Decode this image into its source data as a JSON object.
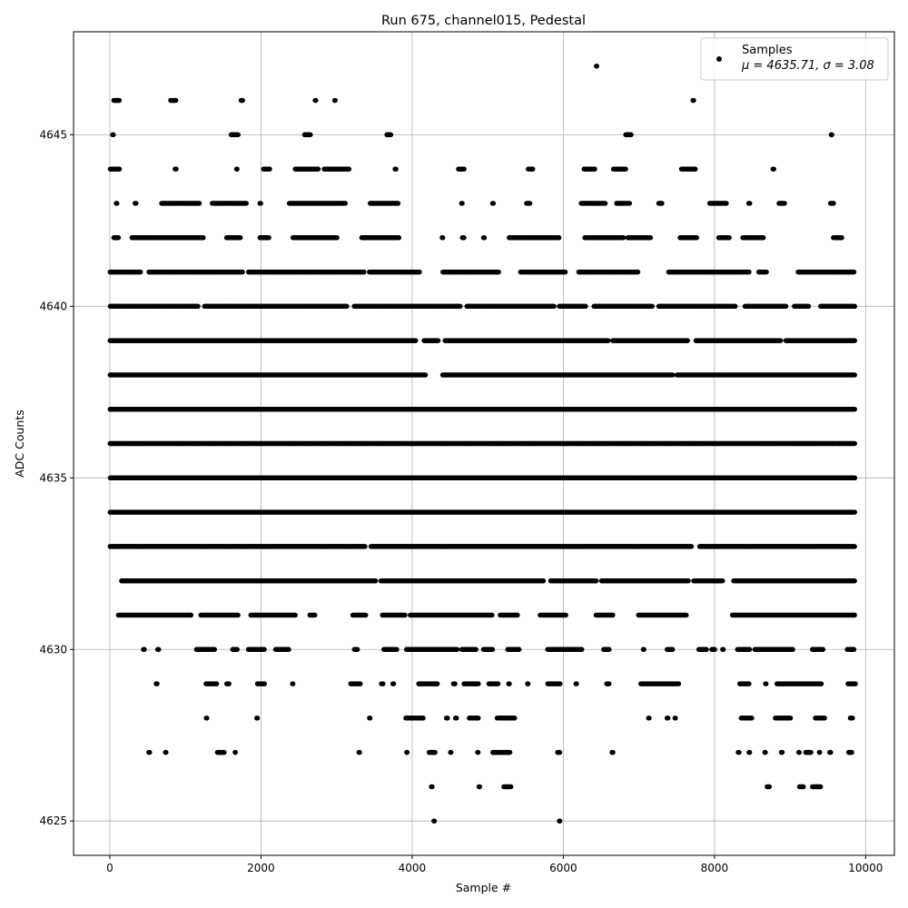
{
  "chart_data": {
    "type": "scatter",
    "title": "Run 675, channel015, Pedestal",
    "xlabel": "Sample #",
    "ylabel": "ADC Counts",
    "xlim": [
      -480,
      10380
    ],
    "ylim": [
      4624,
      4648
    ],
    "xticks": [
      0,
      2000,
      4000,
      6000,
      8000,
      10000
    ],
    "yticks": [
      4625,
      4630,
      4635,
      4640,
      4645
    ],
    "grid": true,
    "legend": {
      "placement": "top-right",
      "entries": [
        {
          "label": "Samples",
          "stats": "μ = 4635.71, σ = 3.08"
        }
      ]
    },
    "series": [
      {
        "name": "Samples",
        "color": "#000000",
        "marker": "circle",
        "n_samples": 10000,
        "level_ranges": [
          {
            "y": 4647,
            "x": [
              [
                6430,
                6450
              ]
            ]
          },
          {
            "y": 4646,
            "x": [
              [
                50,
                130
              ],
              [
                800,
                880
              ],
              [
                1730,
                1760
              ],
              [
                2710,
                2730
              ],
              [
                2970,
                2990
              ],
              [
                7710,
                7730
              ]
            ]
          },
          {
            "y": 4645,
            "x": [
              [
                30,
                50
              ],
              [
                1600,
                1700
              ],
              [
                2570,
                2660
              ],
              [
                3660,
                3720
              ],
              [
                6820,
                6900
              ],
              [
                9540,
                9560
              ]
            ]
          },
          {
            "y": 4644,
            "x": [
              [
                0,
                130
              ],
              [
                860,
                880
              ],
              [
                1670,
                1690
              ],
              [
                2030,
                2120
              ],
              [
                2450,
                2760
              ],
              [
                2830,
                3170
              ],
              [
                3770,
                3790
              ],
              [
                4610,
                4690
              ],
              [
                5530,
                5600
              ],
              [
                6270,
                6420
              ],
              [
                6660,
                6830
              ],
              [
                7560,
                7750
              ],
              [
                8770,
                8790
              ]
            ]
          },
          {
            "y": 4643,
            "x": [
              [
                80,
                100
              ],
              [
                330,
                350
              ],
              [
                680,
                1190
              ],
              [
                1350,
                1810
              ],
              [
                1980,
                2000
              ],
              [
                2370,
                3120
              ],
              [
                3440,
                3820
              ],
              [
                4650,
                4670
              ],
              [
                5060,
                5080
              ],
              [
                5510,
                5560
              ],
              [
                6230,
                6560
              ],
              [
                6700,
                6880
              ],
              [
                7260,
                7310
              ],
              [
                7930,
                8160
              ],
              [
                8450,
                8470
              ],
              [
                8850,
                8930
              ],
              [
                9530,
                9580
              ]
            ]
          },
          {
            "y": 4642,
            "x": [
              [
                50,
                120
              ],
              [
                290,
                1240
              ],
              [
                1540,
                1730
              ],
              [
                1980,
                2110
              ],
              [
                2420,
                3010
              ],
              [
                3330,
                3830
              ],
              [
                4390,
                4410
              ],
              [
                4660,
                4690
              ],
              [
                4940,
                4960
              ],
              [
                5280,
                5950
              ],
              [
                6280,
                6800
              ],
              [
                6850,
                7160
              ],
              [
                7540,
                7770
              ],
              [
                8050,
                8200
              ],
              [
                8370,
                8650
              ],
              [
                9570,
                9690
              ]
            ]
          },
          {
            "y": 4641,
            "x": [
              [
                0,
                410
              ],
              [
                510,
                1760
              ],
              [
                1830,
                3370
              ],
              [
                3430,
                4100
              ],
              [
                4400,
                5150
              ],
              [
                5430,
                6030
              ],
              [
                6200,
                6990
              ],
              [
                7390,
                8460
              ],
              [
                8580,
                8690
              ],
              [
                9100,
                9850
              ]
            ]
          },
          {
            "y": 4640,
            "x": [
              [
                0,
                1170
              ],
              [
                1250,
                3140
              ],
              [
                3230,
                4640
              ],
              [
                4720,
                5880
              ],
              [
                5940,
                6300
              ],
              [
                6400,
                7180
              ],
              [
                7260,
                8280
              ],
              [
                8400,
                8950
              ],
              [
                9050,
                9250
              ],
              [
                9400,
                9860
              ]
            ]
          },
          {
            "y": 4639,
            "x": [
              [
                0,
                4050
              ],
              [
                4150,
                4350
              ],
              [
                4430,
                6600
              ],
              [
                6650,
                7650
              ],
              [
                7750,
                8880
              ],
              [
                8940,
                9860
              ]
            ]
          },
          {
            "y": 4638,
            "x": [
              [
                0,
                4180
              ],
              [
                4400,
                7450
              ],
              [
                7500,
                9860
              ]
            ]
          },
          {
            "y": 4637,
            "x": [
              [
                0,
                9860
              ]
            ]
          },
          {
            "y": 4636,
            "x": [
              [
                0,
                9860
              ]
            ]
          },
          {
            "y": 4635,
            "x": [
              [
                0,
                9860
              ]
            ]
          },
          {
            "y": 4634,
            "x": [
              [
                0,
                9860
              ]
            ]
          },
          {
            "y": 4633,
            "x": [
              [
                0,
                3380
              ],
              [
                3450,
                7700
              ],
              [
                7800,
                9860
              ]
            ]
          },
          {
            "y": 4632,
            "x": [
              [
                150,
                3520
              ],
              [
                3580,
                5740
              ],
              [
                5830,
                6440
              ],
              [
                6500,
                7660
              ],
              [
                7720,
                8110
              ],
              [
                8250,
                9860
              ]
            ]
          },
          {
            "y": 4631,
            "x": [
              [
                110,
                1080
              ],
              [
                1200,
                1700
              ],
              [
                1860,
                2460
              ],
              [
                2640,
                2720
              ],
              [
                3210,
                3390
              ],
              [
                3600,
                3910
              ],
              [
                3970,
                5060
              ],
              [
                5160,
                5400
              ],
              [
                5690,
                6040
              ],
              [
                6430,
                6660
              ],
              [
                6990,
                7630
              ],
              [
                8230,
                9860
              ]
            ]
          },
          {
            "y": 4630,
            "x": [
              [
                440,
                460
              ],
              [
                630,
                650
              ],
              [
                1140,
                1390
              ],
              [
                1620,
                1690
              ],
              [
                1830,
                2050
              ],
              [
                2190,
                2370
              ],
              [
                3230,
                3280
              ],
              [
                3620,
                3800
              ],
              [
                3920,
                4600
              ],
              [
                4650,
                4850
              ],
              [
                4940,
                5070
              ],
              [
                5260,
                5420
              ],
              [
                5790,
                6250
              ],
              [
                6530,
                6610
              ],
              [
                7050,
                7070
              ],
              [
                7370,
                7450
              ],
              [
                7790,
                7900
              ],
              [
                7960,
                8010
              ],
              [
                8100,
                8120
              ],
              [
                8300,
                8470
              ],
              [
                8530,
                9040
              ],
              [
                9290,
                9440
              ],
              [
                9750,
                9850
              ]
            ]
          },
          {
            "y": 4629,
            "x": [
              [
                610,
                630
              ],
              [
                1270,
                1420
              ],
              [
                1540,
                1580
              ],
              [
                1950,
                2050
              ],
              [
                2410,
                2430
              ],
              [
                3180,
                3320
              ],
              [
                3590,
                3620
              ],
              [
                3740,
                3760
              ],
              [
                4080,
                4340
              ],
              [
                4540,
                4570
              ],
              [
                4680,
                4880
              ],
              [
                5010,
                5140
              ],
              [
                5270,
                5290
              ],
              [
                5520,
                5540
              ],
              [
                5790,
                5960
              ],
              [
                6160,
                6180
              ],
              [
                6570,
                6610
              ],
              [
                7020,
                7530
              ],
              [
                8330,
                8460
              ],
              [
                8670,
                8690
              ],
              [
                8820,
                9420
              ],
              [
                9760,
                9870
              ]
            ]
          },
          {
            "y": 4628,
            "x": [
              [
                1270,
                1290
              ],
              [
                1940,
                1960
              ],
              [
                3430,
                3450
              ],
              [
                3910,
                4150
              ],
              [
                4450,
                4470
              ],
              [
                4570,
                4590
              ],
              [
                4750,
                4880
              ],
              [
                5120,
                5360
              ],
              [
                7120,
                7140
              ],
              [
                7370,
                7390
              ],
              [
                7470,
                7490
              ],
              [
                8350,
                8500
              ],
              [
                8800,
                9010
              ],
              [
                9330,
                9460
              ],
              [
                9790,
                9830
              ]
            ]
          },
          {
            "y": 4627,
            "x": [
              [
                510,
                530
              ],
              [
                730,
                750
              ],
              [
                1420,
                1520
              ],
              [
                1650,
                1670
              ],
              [
                3290,
                3310
              ],
              [
                3920,
                3940
              ],
              [
                4220,
                4310
              ],
              [
                4500,
                4520
              ],
              [
                4860,
                4880
              ],
              [
                5060,
                5300
              ],
              [
                5920,
                5960
              ],
              [
                6640,
                6660
              ],
              [
                8310,
                8330
              ],
              [
                8450,
                8470
              ],
              [
                8660,
                8680
              ],
              [
                8880,
                8900
              ],
              [
                9110,
                9130
              ],
              [
                9200,
                9280
              ],
              [
                9380,
                9400
              ],
              [
                9520,
                9540
              ],
              [
                9770,
                9820
              ]
            ]
          },
          {
            "y": 4626,
            "x": [
              [
                4250,
                4270
              ],
              [
                4880,
                4900
              ],
              [
                5210,
                5310
              ],
              [
                8690,
                8730
              ],
              [
                9120,
                9180
              ],
              [
                9290,
                9410
              ]
            ]
          },
          {
            "y": 4625,
            "x": [
              [
                4280,
                4300
              ],
              [
                5940,
                5960
              ]
            ]
          }
        ]
      }
    ]
  }
}
